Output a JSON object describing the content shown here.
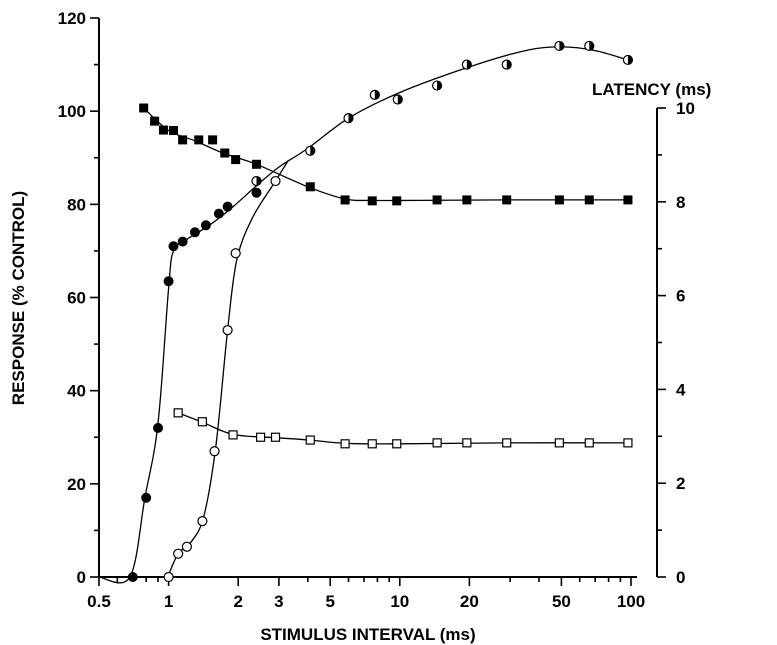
{
  "chart_data": {
    "type": "scatter",
    "x_scale": "log",
    "xlabel": "STIMULUS INTERVAL (ms)",
    "ylabel_left": "RESPONSE (% CONTROL)",
    "ylabel_right": "LATENCY (ms)",
    "xlim": [
      0.5,
      100
    ],
    "ylim_left": [
      0,
      120
    ],
    "ylim_right": [
      0,
      10
    ],
    "x_ticks": [
      0.5,
      1,
      2,
      3,
      5,
      10,
      20,
      50,
      100
    ],
    "x_tick_labels": [
      "0.5",
      "1",
      "2",
      "3",
      "5",
      "10",
      "20",
      "50",
      "100"
    ],
    "y_left_ticks": [
      0,
      20,
      40,
      60,
      80,
      100,
      120
    ],
    "y_left_tick_labels": [
      "0",
      "20",
      "40",
      "60",
      "80",
      "100",
      "120"
    ],
    "y_right_ticks": [
      0,
      2,
      4,
      6,
      8,
      10
    ],
    "y_right_tick_labels": [
      "0",
      "2",
      "4",
      "6",
      "8",
      "10"
    ],
    "grid": false,
    "series": [
      {
        "marker": "filled-circle",
        "axis": "left",
        "x": [
          0.7,
          0.8,
          0.9,
          1.0,
          1.05,
          1.15,
          1.3,
          1.45,
          1.65,
          1.8,
          2.4
        ],
        "y": [
          0,
          17,
          32,
          63.5,
          71,
          72,
          74,
          75.5,
          78,
          79.5,
          82.5
        ]
      },
      {
        "marker": "half-filled-circle",
        "axis": "left",
        "x": [
          2.4,
          4.1,
          6.0,
          7.8,
          9.8,
          14.5,
          19.5,
          29.0,
          49.0,
          66.0,
          97.0
        ],
        "y": [
          85,
          91.5,
          98.5,
          103.5,
          102.5,
          105.5,
          110,
          110,
          114,
          114,
          111
        ]
      },
      {
        "marker": "open-circle",
        "axis": "left",
        "x": [
          1.0,
          1.1,
          1.2,
          1.4,
          1.58,
          1.8,
          1.95,
          2.9
        ],
        "y": [
          0,
          5,
          6.5,
          12,
          27,
          53,
          69.5,
          85
        ]
      },
      {
        "marker": "filled-square",
        "axis": "right",
        "x": [
          0.78,
          0.87,
          0.95,
          1.05,
          1.15,
          1.35,
          1.55,
          1.75,
          1.95,
          2.4,
          4.1,
          5.8,
          7.6,
          9.7,
          14.5,
          19.5,
          29.0,
          49.0,
          66.0,
          97.0
        ],
        "y": [
          10.0,
          9.72,
          9.53,
          9.52,
          9.32,
          9.32,
          9.32,
          9.04,
          8.9,
          8.8,
          8.32,
          8.04,
          8.02,
          8.02,
          8.04,
          8.04,
          8.04,
          8.04,
          8.04,
          8.04
        ]
      },
      {
        "marker": "open-square",
        "axis": "right",
        "x": [
          1.1,
          1.4,
          1.9,
          2.5,
          2.9,
          4.1,
          5.8,
          7.6,
          9.7,
          14.5,
          19.5,
          29.0,
          49.0,
          66.0,
          97.0
        ],
        "y": [
          3.5,
          3.31,
          3.03,
          2.98,
          2.98,
          2.92,
          2.84,
          2.84,
          2.84,
          2.86,
          2.86,
          2.86,
          2.86,
          2.86,
          2.86
        ]
      }
    ]
  }
}
